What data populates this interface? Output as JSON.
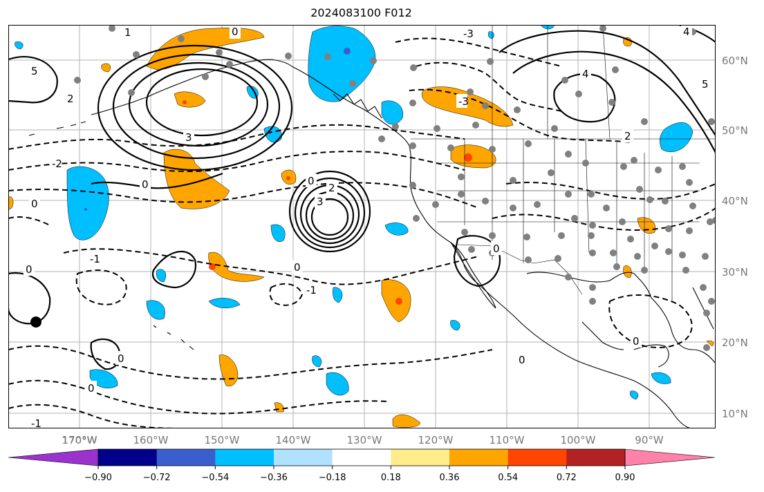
{
  "title": "2024083100 F012",
  "lon_labels": [
    "170°W",
    "160°W",
    "150°W",
    "140°W",
    "130°W",
    "120°W",
    "110°W",
    "100°W",
    "90°W"
  ],
  "lat_labels": [
    "60°N",
    "50°N",
    "40°N",
    "30°N",
    "20°N",
    "10°N"
  ],
  "colorbar": {
    "ticks": [
      "−0.90",
      "−0.72",
      "−0.54",
      "−0.36",
      "−0.18",
      "0.18",
      "0.36",
      "0.54",
      "0.72",
      "0.90"
    ],
    "colors": [
      "#9a32cd",
      "#00008b",
      "#3a5fcd",
      "#00bfff",
      "#b0e2ff",
      "#ffffff",
      "#ffec8b",
      "#ffa500",
      "#ff4500",
      "#b22222",
      "#ff82ab"
    ]
  },
  "contour_labels": [
    "0",
    "1",
    "2",
    "3",
    "4",
    "5",
    "-1",
    "-2",
    "-3"
  ],
  "legend_colors": {
    "warm_fill": "#ffa500",
    "warm_core": "#ff4500",
    "cold_fill": "#00bfff",
    "cold_core": "#3a5fcd",
    "station_dot": "#808080"
  }
}
